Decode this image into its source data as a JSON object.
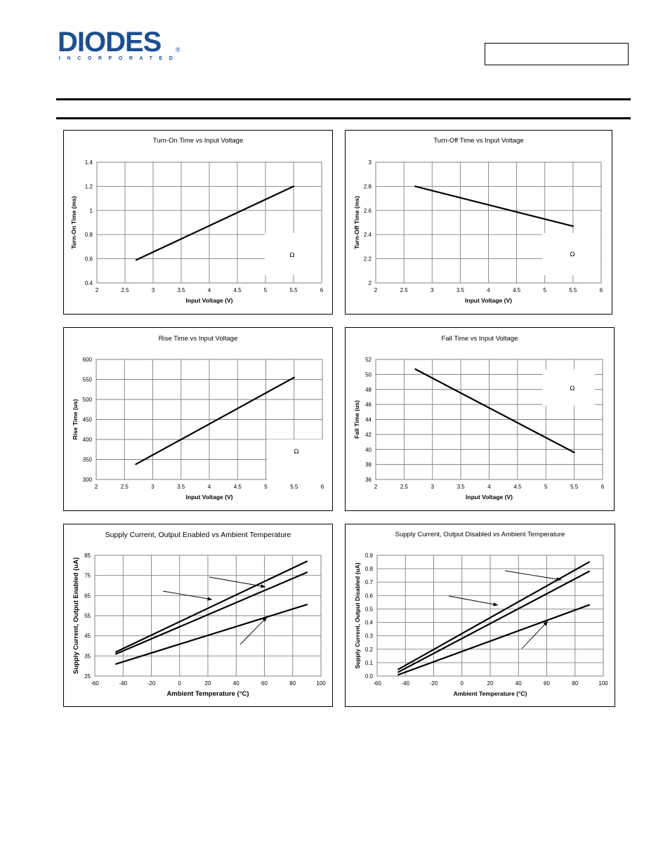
{
  "header": {
    "logo_text": "DIODES",
    "logo_subtext": "INCORPORATED",
    "logo_reg": "®"
  },
  "chart_data": [
    {
      "type": "line",
      "title": "Turn-On Time vs Input Voltage",
      "xlabel": "Input Voltage (V)",
      "ylabel": "Turn-On Time (ms)",
      "xlim": [
        2,
        6
      ],
      "ylim": [
        0.4,
        1.4
      ],
      "xticks": [
        2,
        2.5,
        3,
        3.5,
        4,
        4.5,
        5,
        5.5,
        6
      ],
      "yticks": [
        0.4,
        0.6,
        0.8,
        1,
        1.2,
        1.4
      ],
      "ytick_labels": [
        "0.4",
        "0.6",
        "0.8",
        "1",
        "1.2",
        "1.4"
      ],
      "series": [
        {
          "x": [
            2.7,
            5.5
          ],
          "y": [
            0.59,
            1.2
          ]
        }
      ],
      "annotation": "Ω",
      "grid": true
    },
    {
      "type": "line",
      "title": "Turn-Off Time vs Input Voltage",
      "xlabel": "Input Voltage (V)",
      "ylabel": "Turn-Off Time (ms)",
      "xlim": [
        2,
        6
      ],
      "ylim": [
        2,
        3
      ],
      "xticks": [
        2,
        2.5,
        3,
        3.5,
        4,
        4.5,
        5,
        5.5,
        6
      ],
      "yticks": [
        2,
        2.2,
        2.4,
        2.6,
        2.8,
        3
      ],
      "ytick_labels": [
        "2",
        "2.2",
        "2.4",
        "2.6",
        "2.8",
        "3"
      ],
      "series": [
        {
          "x": [
            2.7,
            5.5
          ],
          "y": [
            2.8,
            2.47
          ]
        }
      ],
      "annotation": "Ω",
      "grid": true
    },
    {
      "type": "line",
      "title": "Rise Time vs Input Voltage",
      "xlabel": "Input Voltage (V)",
      "ylabel": "Rise Time (us)",
      "xlim": [
        2,
        6
      ],
      "ylim": [
        300,
        600
      ],
      "xticks": [
        2,
        2.5,
        3,
        3.5,
        4,
        4.5,
        5,
        5.5,
        6
      ],
      "yticks": [
        300,
        350,
        400,
        450,
        500,
        550,
        600
      ],
      "ytick_labels": [
        "300",
        "350",
        "400",
        "450",
        "500",
        "550",
        "600"
      ],
      "series": [
        {
          "x": [
            2.7,
            5.5
          ],
          "y": [
            338,
            555
          ]
        }
      ],
      "annotation": "Ω",
      "grid": true
    },
    {
      "type": "line",
      "title": "Fall Time vs Input Voltage",
      "xlabel": "Input Voltage (V)",
      "ylabel": "Fall Time (us)",
      "xlim": [
        2,
        6
      ],
      "ylim": [
        36,
        52
      ],
      "xticks": [
        2,
        2.5,
        3,
        3.5,
        4,
        4.5,
        5,
        5.5,
        6
      ],
      "yticks": [
        36,
        38,
        40,
        42,
        44,
        46,
        48,
        50,
        52
      ],
      "ytick_labels": [
        "36",
        "38",
        "40",
        "42",
        "44",
        "46",
        "48",
        "50",
        "52"
      ],
      "series": [
        {
          "x": [
            2.7,
            5.5
          ],
          "y": [
            50.7,
            39.6
          ]
        }
      ],
      "annotation": "Ω",
      "grid": true
    },
    {
      "type": "line",
      "title": "Supply Current, Output Enabled vs Ambient Temperature",
      "xlabel": "Ambient Temperature (°C)",
      "ylabel": "Supply Current, Output Enabled (uA)",
      "xlim": [
        -60,
        100
      ],
      "ylim": [
        25,
        85
      ],
      "xticks": [
        -60,
        -40,
        -20,
        0,
        20,
        40,
        60,
        80,
        100
      ],
      "yticks": [
        25,
        35,
        45,
        55,
        65,
        75,
        85
      ],
      "ytick_labels": [
        "25",
        "35",
        "45",
        "55",
        "65",
        "75",
        "85"
      ],
      "series": [
        {
          "x": [
            -45,
            90
          ],
          "y": [
            37,
            82
          ]
        },
        {
          "x": [
            -45,
            90
          ],
          "y": [
            36,
            76.5
          ]
        },
        {
          "x": [
            -45,
            90
          ],
          "y": [
            31,
            60.5
          ]
        }
      ],
      "grid": true
    },
    {
      "type": "line",
      "title": "Supply Current, Output Disabled vs Ambient Temperature",
      "xlabel": "Ambient Temperature (°C)",
      "ylabel": "Supply Current, Output Disabled (uA)",
      "xlim": [
        -60,
        100
      ],
      "ylim": [
        0,
        0.9
      ],
      "xticks": [
        -60,
        -40,
        -20,
        0,
        20,
        40,
        60,
        80,
        100
      ],
      "yticks": [
        0,
        0.1,
        0.2,
        0.3,
        0.4,
        0.5,
        0.6,
        0.7,
        0.8,
        0.9
      ],
      "ytick_labels": [
        "0.0",
        "0.1",
        "0.2",
        "0.3",
        "0.4",
        "0.5",
        "0.6",
        "0.7",
        "0.8",
        "0.9"
      ],
      "series": [
        {
          "x": [
            -45,
            90
          ],
          "y": [
            0.05,
            0.85
          ]
        },
        {
          "x": [
            -45,
            90
          ],
          "y": [
            0.03,
            0.78
          ]
        },
        {
          "x": [
            -45,
            90
          ],
          "y": [
            0.01,
            0.53
          ]
        }
      ],
      "grid": true
    }
  ]
}
